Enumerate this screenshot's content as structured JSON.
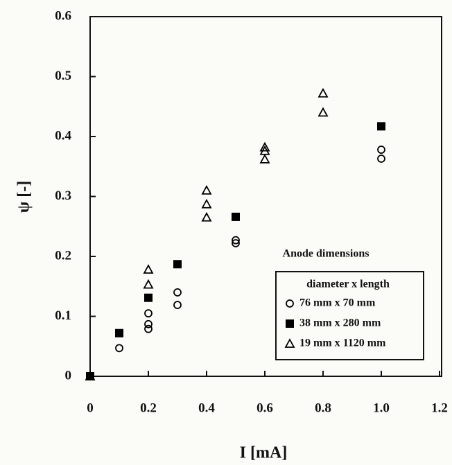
{
  "chart_data": {
    "type": "scatter",
    "x_label": "I [mA]",
    "y_label": "ψ [-]",
    "xlim": [
      0,
      1.2
    ],
    "ylim": [
      0,
      0.6
    ],
    "xticks": [
      0,
      0.2,
      0.4,
      0.6,
      0.8,
      {
        "value": 1,
        "label": "1.0"
      },
      1.2
    ],
    "yticks": [
      0,
      0.1,
      0.2,
      0.3,
      0.4,
      0.5,
      0.6
    ],
    "legend_title": "Anode dimensions",
    "legend_subtitle": "diameter x length",
    "series": [
      {
        "name": "76 mm x 70 mm",
        "marker": "circle",
        "color": "#000000",
        "x": [
          0,
          0.1,
          0.2,
          0.2,
          0.2,
          0.3,
          0.3,
          0.5,
          0.5,
          1.0,
          1.0
        ],
        "values": [
          0,
          0.047,
          0.105,
          0.087,
          0.079,
          0.14,
          0.119,
          0.227,
          0.222,
          0.378,
          0.363
        ]
      },
      {
        "name": "38 mm x 280 mm",
        "marker": "square",
        "color": "#000000",
        "x": [
          0,
          0.1,
          0.2,
          0.3,
          0.5,
          1.0
        ],
        "values": [
          0,
          0.072,
          0.131,
          0.187,
          0.266,
          0.417
        ]
      },
      {
        "name": "19 mm x 1120 mm",
        "marker": "triangle",
        "color": "#000000",
        "x": [
          0,
          0.2,
          0.2,
          0.4,
          0.4,
          0.4,
          0.6,
          0.6,
          0.6,
          0.8,
          0.8
        ],
        "values": [
          0,
          0.178,
          0.153,
          0.31,
          0.287,
          0.265,
          0.382,
          0.376,
          0.362,
          0.472,
          0.44
        ]
      }
    ]
  }
}
